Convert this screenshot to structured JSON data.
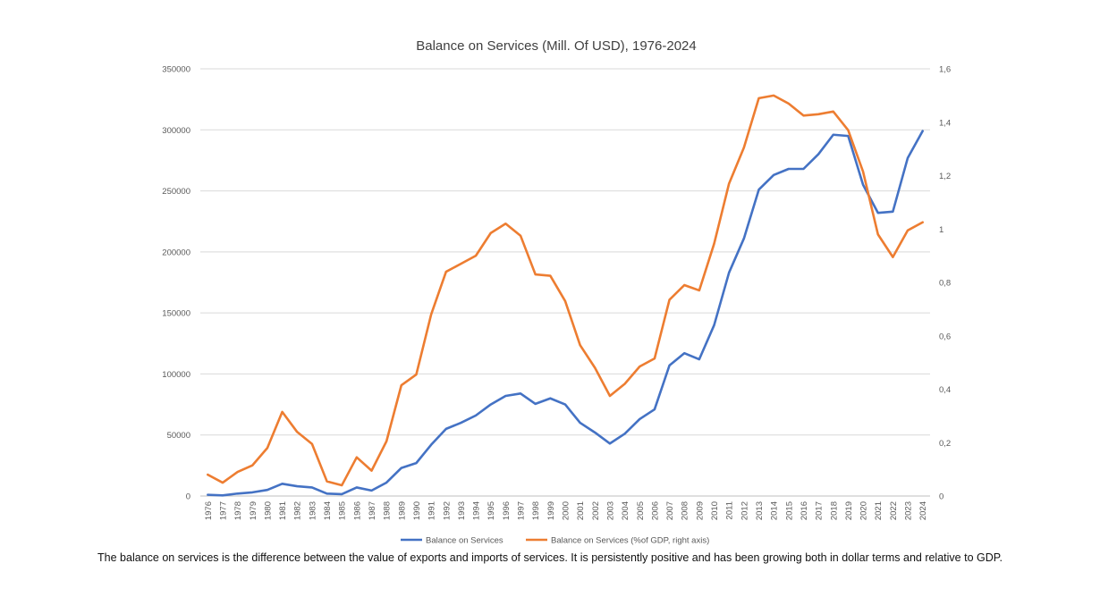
{
  "chart_data": {
    "type": "line",
    "title": "Balance on Services (Mill. Of USD), 1976-2024",
    "x": [
      "1976",
      "1977",
      "1978",
      "1979",
      "1980",
      "1981",
      "1982",
      "1983",
      "1984",
      "1985",
      "1986",
      "1987",
      "1988",
      "1989",
      "1990",
      "1991",
      "1992",
      "1993",
      "1994",
      "1995",
      "1996",
      "1997",
      "1998",
      "1999",
      "2000",
      "2001",
      "2002",
      "2003",
      "2004",
      "2005",
      "2006",
      "2007",
      "2008",
      "2009",
      "2010",
      "2011",
      "2012",
      "2013",
      "2014",
      "2015",
      "2016",
      "2017",
      "2018",
      "2019",
      "2020",
      "2021",
      "2022",
      "2023",
      "2024"
    ],
    "series": [
      {
        "name": "Balance on Services",
        "axis": "left",
        "color": "#4472c4",
        "values": [
          1000,
          500,
          2000,
          3000,
          5000,
          10000,
          8000,
          7000,
          2000,
          1500,
          7000,
          4500,
          11000,
          23000,
          27000,
          42000,
          55000,
          60000,
          66000,
          75000,
          82000,
          84000,
          75500,
          80000,
          75000,
          60000,
          52000,
          43000,
          51000,
          63000,
          71000,
          107000,
          117000,
          112000,
          140000,
          183000,
          211000,
          251000,
          263000,
          268000,
          268000,
          280000,
          296000,
          295000,
          255000,
          232000,
          233000,
          277000,
          299000
        ]
      },
      {
        "name": "Balance on Services (%of GDP, right axis)",
        "axis": "right",
        "color": "#ed7d31",
        "values": [
          0.08,
          0.05,
          0.09,
          0.115,
          0.18,
          0.315,
          0.24,
          0.195,
          0.055,
          0.04,
          0.145,
          0.095,
          0.205,
          0.415,
          0.455,
          0.68,
          0.84,
          0.87,
          0.9,
          0.985,
          1.02,
          0.975,
          0.83,
          0.825,
          0.73,
          0.565,
          0.48,
          0.375,
          0.42,
          0.485,
          0.515,
          0.735,
          0.79,
          0.77,
          0.945,
          1.17,
          1.305,
          1.49,
          1.5,
          1.47,
          1.425,
          1.43,
          1.44,
          1.37,
          1.215,
          0.98,
          0.895,
          0.995,
          1.025
        ]
      }
    ],
    "y_left": {
      "lim": [
        0,
        350000
      ],
      "ticks": [
        "0",
        "50000",
        "100000",
        "150000",
        "200000",
        "250000",
        "300000",
        "350000"
      ]
    },
    "y_right": {
      "lim": [
        0,
        1.6
      ],
      "ticks": [
        "0",
        "0,2",
        "0,4",
        "0,6",
        "0,8",
        "1",
        "1,2",
        "1,4",
        "1,6"
      ]
    },
    "grid": true,
    "legend_position": "bottom"
  },
  "caption": "The  balance on services is the difference between the value of exports and imports of services. It is persistently positive and has been growing both in dollar terms and relative to GDP."
}
